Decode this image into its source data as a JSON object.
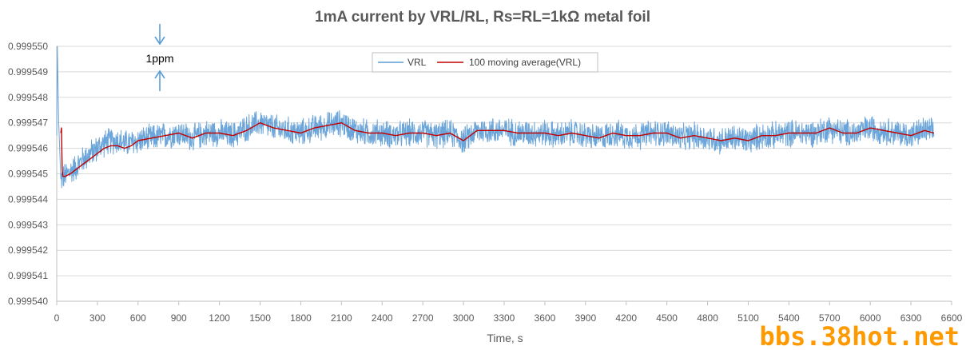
{
  "chart_data": {
    "type": "line",
    "title": "1mA current by VRL/RL, Rs=RL=1kΩ metal foil",
    "xlabel": "Time, s",
    "ylabel": "",
    "xlim": [
      0,
      6600
    ],
    "ylim": [
      0.99954,
      0.99955
    ],
    "x_ticks": [
      0,
      300,
      600,
      900,
      1200,
      1500,
      1800,
      2100,
      2400,
      2700,
      3000,
      3300,
      3600,
      3900,
      4200,
      4500,
      4800,
      5100,
      5400,
      5700,
      6000,
      6300,
      6600
    ],
    "y_ticks": [
      "0.999540",
      "0.999541",
      "0.999542",
      "0.999543",
      "0.999544",
      "0.999545",
      "0.999546",
      "0.999547",
      "0.999548",
      "0.999549",
      "0.999550"
    ],
    "grid": "horizontal",
    "legend_position": "top-center",
    "series": [
      {
        "name": "VRL",
        "color": "#5b9bd5",
        "noise_amplitude": 5e-07,
        "x": [
          0,
          5,
          15,
          30,
          60,
          100,
          150,
          200,
          250,
          300,
          350,
          400,
          450,
          500,
          550,
          600,
          700,
          800,
          900,
          1000,
          1100,
          1200,
          1300,
          1400,
          1500,
          1600,
          1700,
          1800,
          1900,
          2000,
          2100,
          2200,
          2300,
          2400,
          2500,
          2600,
          2700,
          2800,
          2900,
          3000,
          3100,
          3200,
          3300,
          3400,
          3500,
          3600,
          3700,
          3800,
          3900,
          4000,
          4100,
          4200,
          4300,
          4400,
          4500,
          4600,
          4700,
          4800,
          4900,
          5000,
          5100,
          5200,
          5300,
          5400,
          5500,
          5600,
          5700,
          5800,
          5900,
          6000,
          6100,
          6200,
          6300,
          6400,
          6470
        ],
        "y": [
          0.9995465,
          0.99955,
          0.999547,
          0.9995448,
          0.9995449,
          0.9995451,
          0.9995453,
          0.9995456,
          0.9995458,
          0.999546,
          0.9995462,
          0.9995463,
          0.9995463,
          0.9995462,
          0.9995462,
          0.9995463,
          0.9995464,
          0.9995465,
          0.9995466,
          0.9995464,
          0.9995466,
          0.9995466,
          0.9995465,
          0.9995468,
          0.999547,
          0.9995468,
          0.9995467,
          0.9995466,
          0.9995468,
          0.9995469,
          0.999547,
          0.9995467,
          0.9995466,
          0.9995466,
          0.9995465,
          0.9995466,
          0.9995466,
          0.9995465,
          0.9995466,
          0.9995463,
          0.9995467,
          0.9995467,
          0.9995467,
          0.9995466,
          0.9995466,
          0.9995466,
          0.9995465,
          0.9995466,
          0.9995465,
          0.9995464,
          0.9995466,
          0.9995465,
          0.9995465,
          0.9995466,
          0.9995466,
          0.9995464,
          0.9995465,
          0.9995464,
          0.9995463,
          0.9995464,
          0.9995463,
          0.9995465,
          0.9995465,
          0.9995466,
          0.9995466,
          0.9995466,
          0.9995468,
          0.9995466,
          0.9995466,
          0.9995468,
          0.9995467,
          0.9995466,
          0.9995465,
          0.9995467,
          0.9995466
        ]
      },
      {
        "name": "100 moving average(VRL)",
        "color": "#c00000",
        "x": [
          30,
          35,
          40,
          45,
          60,
          100,
          150,
          200,
          250,
          300,
          350,
          400,
          450,
          500,
          550,
          600,
          700,
          800,
          900,
          1000,
          1100,
          1200,
          1300,
          1400,
          1500,
          1600,
          1700,
          1800,
          1900,
          2000,
          2100,
          2200,
          2300,
          2400,
          2500,
          2600,
          2700,
          2800,
          2900,
          3000,
          3100,
          3200,
          3300,
          3400,
          3500,
          3600,
          3700,
          3800,
          3900,
          4000,
          4100,
          4200,
          4300,
          4400,
          4500,
          4600,
          4700,
          4800,
          4900,
          5000,
          5100,
          5200,
          5300,
          5400,
          5500,
          5600,
          5700,
          5800,
          5900,
          6000,
          6100,
          6200,
          6300,
          6400,
          6470
        ],
        "y": [
          0.9995466,
          0.9995468,
          0.9995452,
          0.9995449,
          0.9995449,
          0.999545,
          0.9995452,
          0.9995454,
          0.9995456,
          0.9995458,
          0.999546,
          0.9995461,
          0.9995461,
          0.999546,
          0.9995461,
          0.9995463,
          0.9995464,
          0.9995465,
          0.9995466,
          0.9995464,
          0.9995466,
          0.9995466,
          0.9995465,
          0.9995467,
          0.999547,
          0.9995468,
          0.9995467,
          0.9995466,
          0.9995468,
          0.9995469,
          0.999547,
          0.9995467,
          0.9995466,
          0.9995466,
          0.9995465,
          0.9995466,
          0.9995466,
          0.9995465,
          0.9995466,
          0.9995463,
          0.9995467,
          0.9995467,
          0.9995467,
          0.9995466,
          0.9995466,
          0.9995466,
          0.9995465,
          0.9995466,
          0.9995465,
          0.9995464,
          0.9995466,
          0.9995465,
          0.9995465,
          0.9995466,
          0.9995466,
          0.9995464,
          0.9995465,
          0.9995464,
          0.9995463,
          0.9995464,
          0.9995463,
          0.9995465,
          0.9995465,
          0.9995466,
          0.9995466,
          0.9995466,
          0.9995468,
          0.9995466,
          0.9995466,
          0.9995468,
          0.9995467,
          0.9995466,
          0.9995465,
          0.9995467,
          0.9995466
        ]
      }
    ],
    "annotations": [
      {
        "text": "1ppm",
        "from_y": 0.99955,
        "to_y": 0.999549,
        "at_x": 750
      }
    ]
  },
  "legend": {
    "vrl_label": "VRL",
    "ma_label": "100 moving average(VRL)"
  },
  "watermark": {
    "text": "bbs.38hot.net",
    "color": "#ff9900"
  }
}
